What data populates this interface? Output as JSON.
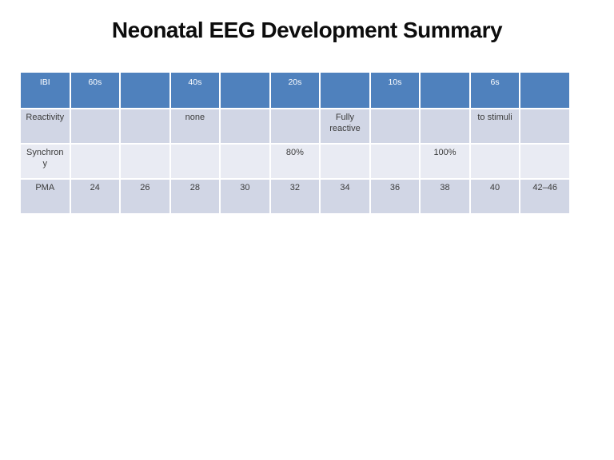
{
  "slide": {
    "title": "Neonatal EEG Development Summary"
  },
  "theme": {
    "header_bg": "#4f81bd",
    "band_dark": "#d1d6e5",
    "band_light": "#e9ebf3",
    "header_text": "#ffffff",
    "body_text": "#3b3b3b",
    "title_color": "#0d0d0d",
    "grid_line": "#ffffff"
  },
  "table": {
    "rows": [
      {
        "cells": [
          "IBI",
          "60s",
          "",
          "40s",
          "",
          "20s",
          "",
          "10s",
          "",
          "6s",
          ""
        ]
      },
      {
        "cells": [
          "Reactivity",
          "",
          "",
          "none",
          "",
          "",
          "Fully reactive",
          "",
          "",
          "to stimuli",
          ""
        ]
      },
      {
        "cells": [
          "Synchrony",
          "",
          "",
          "",
          "",
          "80%",
          "",
          "",
          "100%",
          "",
          ""
        ]
      },
      {
        "cells": [
          "PMA",
          "24",
          "26",
          "28",
          "30",
          "32",
          "34",
          "36",
          "38",
          "40",
          "42–46"
        ]
      }
    ]
  }
}
